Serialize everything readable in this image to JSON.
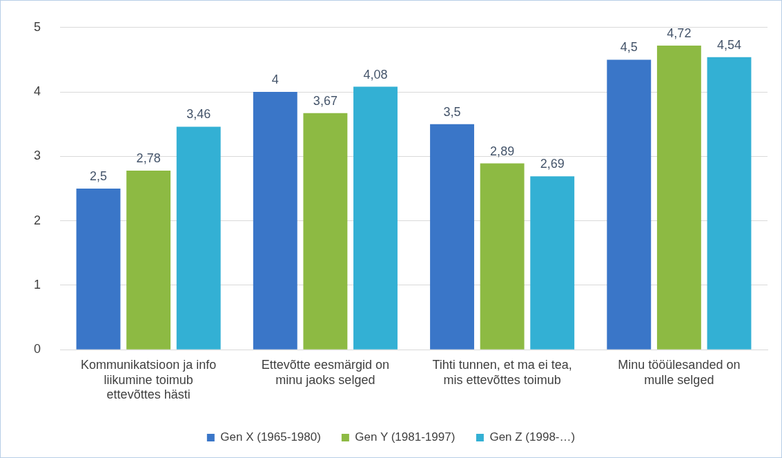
{
  "chart_data": {
    "type": "bar",
    "categories": [
      "Kommunikatsioon ja info liikumine toimub ettevõttes hästi",
      "Ettevõtte eesmärgid on minu jaoks selged",
      "Tihti tunnen, et ma ei tea, mis ettevõttes toimub",
      "Minu tööülesanded on mulle selged"
    ],
    "series": [
      {
        "name": "Gen X (1965-1980)",
        "color": "#3a76c8",
        "values": [
          2.5,
          4,
          3.5,
          4.5
        ],
        "value_labels": [
          "2,5",
          "4",
          "3,5",
          "4,5"
        ]
      },
      {
        "name": "Gen Y (1981-1997)",
        "color": "#8dba43",
        "values": [
          2.78,
          3.67,
          2.89,
          4.72
        ],
        "value_labels": [
          "2,78",
          "3,67",
          "2,89",
          "4,72"
        ]
      },
      {
        "name": "Gen Z (1998-…)",
        "color": "#33b0d4",
        "values": [
          3.46,
          4.08,
          2.69,
          4.54
        ],
        "value_labels": [
          "3,46",
          "4,08",
          "2,69",
          "4,54"
        ]
      }
    ],
    "ylim": [
      0,
      5
    ],
    "yticks": [
      0,
      1,
      2,
      3,
      4,
      5
    ],
    "grid": "y",
    "legend": "bottom"
  }
}
